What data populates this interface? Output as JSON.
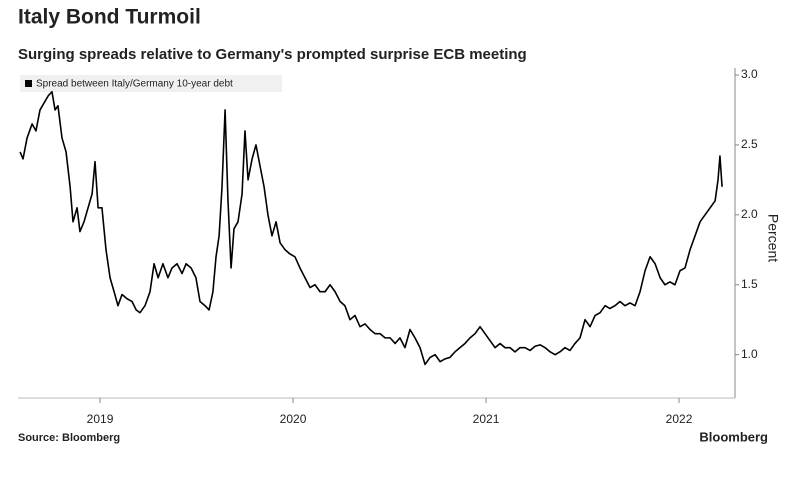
{
  "chart_data": {
    "type": "line",
    "title": "Italy Bond Turmoil",
    "subtitle": "Surging spreads relative to Germany's prompted surprise ECB meeting",
    "y_label": "Percent",
    "source": "Source: Bloomberg",
    "brand": "Bloomberg",
    "x": [
      2018.586,
      2018.601,
      2018.622,
      2018.648,
      2018.668,
      2018.689,
      2018.71,
      2018.731,
      2018.751,
      2018.767,
      2018.782,
      2018.803,
      2018.824,
      2018.845,
      2018.86,
      2018.881,
      2018.896,
      2018.917,
      2018.938,
      2018.959,
      2018.974,
      2018.99,
      2019.01,
      2019.031,
      2019.052,
      2019.073,
      2019.093,
      2019.114,
      2019.14,
      2019.166,
      2019.187,
      2019.207,
      2019.233,
      2019.259,
      2019.28,
      2019.301,
      2019.326,
      2019.352,
      2019.373,
      2019.399,
      2019.425,
      2019.446,
      2019.472,
      2019.497,
      2019.518,
      2019.544,
      2019.565,
      2019.585,
      2019.601,
      2019.617,
      2019.632,
      2019.648,
      2019.663,
      2019.679,
      2019.694,
      2019.715,
      2019.736,
      2019.751,
      2019.767,
      2019.788,
      2019.808,
      2019.829,
      2019.85,
      2019.87,
      2019.891,
      2019.912,
      2019.933,
      2019.959,
      2019.984,
      2020.01,
      2020.036,
      2020.062,
      2020.088,
      2020.114,
      2020.14,
      2020.166,
      2020.192,
      2020.218,
      2020.244,
      2020.269,
      2020.295,
      2020.321,
      2020.347,
      2020.373,
      2020.399,
      2020.425,
      2020.451,
      2020.477,
      2020.503,
      2020.529,
      2020.554,
      2020.58,
      2020.606,
      2020.632,
      2020.658,
      2020.684,
      2020.71,
      2020.736,
      2020.762,
      2020.788,
      2020.813,
      2020.839,
      2020.865,
      2020.891,
      2020.917,
      2020.943,
      2020.969,
      2020.995,
      2021.021,
      2021.047,
      2021.073,
      2021.098,
      2021.124,
      2021.15,
      2021.176,
      2021.202,
      2021.228,
      2021.254,
      2021.28,
      2021.306,
      2021.332,
      2021.358,
      2021.383,
      2021.409,
      2021.435,
      2021.461,
      2021.487,
      2021.513,
      2021.539,
      2021.565,
      2021.591,
      2021.617,
      2021.642,
      2021.668,
      2021.694,
      2021.72,
      2021.746,
      2021.772,
      2021.798,
      2021.824,
      2021.85,
      2021.876,
      2021.902,
      2021.927,
      2021.953,
      2021.979,
      2022.005,
      2022.031,
      2022.057,
      2022.083,
      2022.109,
      2022.135,
      2022.161,
      2022.187,
      2022.202,
      2022.212,
      2022.223
    ],
    "series": [
      {
        "name": "Spread between Italy/Germany 10-year debt",
        "color": "#000000",
        "values": [
          2.45,
          2.4,
          2.55,
          2.65,
          2.6,
          2.75,
          2.8,
          2.85,
          2.88,
          2.75,
          2.78,
          2.55,
          2.45,
          2.2,
          1.95,
          2.05,
          1.88,
          1.95,
          2.05,
          2.15,
          2.38,
          2.05,
          2.05,
          1.75,
          1.55,
          1.45,
          1.35,
          1.43,
          1.4,
          1.38,
          1.32,
          1.3,
          1.35,
          1.45,
          1.65,
          1.55,
          1.65,
          1.55,
          1.62,
          1.65,
          1.58,
          1.65,
          1.62,
          1.55,
          1.38,
          1.35,
          1.32,
          1.45,
          1.7,
          1.85,
          2.2,
          2.75,
          2.1,
          1.62,
          1.9,
          1.95,
          2.15,
          2.6,
          2.25,
          2.4,
          2.5,
          2.35,
          2.2,
          2.0,
          1.85,
          1.95,
          1.8,
          1.75,
          1.72,
          1.7,
          1.62,
          1.55,
          1.48,
          1.5,
          1.45,
          1.45,
          1.5,
          1.45,
          1.38,
          1.35,
          1.25,
          1.28,
          1.2,
          1.22,
          1.18,
          1.15,
          1.15,
          1.12,
          1.12,
          1.08,
          1.12,
          1.05,
          1.18,
          1.12,
          1.05,
          0.93,
          0.98,
          1.0,
          0.95,
          0.97,
          0.98,
          1.02,
          1.05,
          1.08,
          1.12,
          1.15,
          1.2,
          1.15,
          1.1,
          1.05,
          1.08,
          1.05,
          1.05,
          1.02,
          1.05,
          1.05,
          1.03,
          1.06,
          1.07,
          1.05,
          1.02,
          1.0,
          1.02,
          1.05,
          1.03,
          1.08,
          1.12,
          1.25,
          1.2,
          1.28,
          1.3,
          1.35,
          1.33,
          1.35,
          1.38,
          1.35,
          1.37,
          1.35,
          1.45,
          1.6,
          1.7,
          1.65,
          1.55,
          1.5,
          1.52,
          1.5,
          1.6,
          1.62,
          1.75,
          1.85,
          1.95,
          2.0,
          2.05,
          2.1,
          2.25,
          2.42,
          2.2
        ]
      }
    ],
    "xlim": [
      2018.575,
      2022.29
    ],
    "xticks": [
      2019,
      2020,
      2021,
      2022
    ],
    "ylim": [
      0.69,
      3.05
    ],
    "yticks": [
      {
        "value": 1,
        "label": "1.0"
      },
      1.5,
      {
        "value": 2,
        "label": "2.0"
      },
      2.5,
      {
        "value": 3,
        "label": "3.0"
      }
    ]
  }
}
